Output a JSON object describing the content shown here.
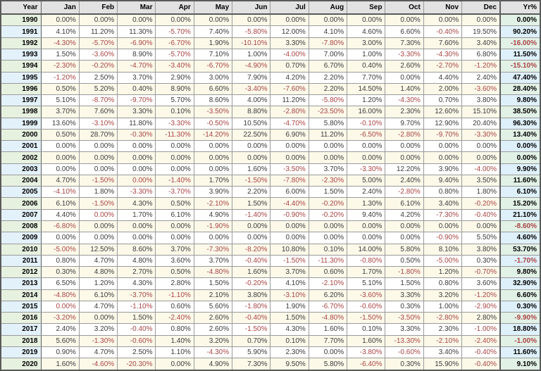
{
  "colors": {
    "negative_text": "#a94444",
    "positive_text": "#3a3a3a",
    "header_bg": "#e2e2e2",
    "stripe_cream": "#fcf9e9",
    "stripe_white": "#ffffff",
    "year_col_green": "#e7f1e0",
    "year_col_blue": "#e3f1fa",
    "yr_col_green": "#e2f1e6",
    "yr_col_blue": "#def0fa",
    "grid_border": "#9a9a9a",
    "outer_border": "#5a5a5a"
  },
  "chart_data": {
    "type": "table",
    "columns": [
      "Year",
      "Jan",
      "Feb",
      "Mar",
      "Apr",
      "May",
      "Jun",
      "Jul",
      "Aug",
      "Sep",
      "Oct",
      "Nov",
      "Dec",
      "Yr%"
    ],
    "red_zero_cells": [
      {
        "year": "2004",
        "month_index": 2
      },
      {
        "year": "2007",
        "month_index": 1
      },
      {
        "year": "2015",
        "month_index": 0
      }
    ],
    "rows": [
      {
        "year": "1990",
        "months": [
          "0.00%",
          "0.00%",
          "0.00%",
          "0.00%",
          "0.00%",
          "0.00%",
          "0.00%",
          "0.00%",
          "0.00%",
          "0.00%",
          "0.00%",
          "0.00%"
        ],
        "yr": "0.00%"
      },
      {
        "year": "1991",
        "months": [
          "4.10%",
          "11.20%",
          "11.30%",
          "-5.70%",
          "7.40%",
          "-5.80%",
          "12.00%",
          "4.10%",
          "4.60%",
          "6.60%",
          "-0.40%",
          "19.50%"
        ],
        "yr": "90.20%"
      },
      {
        "year": "1992",
        "months": [
          "-4.30%",
          "-5.70%",
          "-6.90%",
          "-6.70%",
          "1.90%",
          "-10.10%",
          "3.30%",
          "-7.80%",
          "3.00%",
          "7.30%",
          "7.60%",
          "3.40%"
        ],
        "yr": "-16.00%"
      },
      {
        "year": "1993",
        "months": [
          "1.50%",
          "-3.60%",
          "8.90%",
          "-5.70%",
          "7.10%",
          "1.00%",
          "-4.00%",
          "7.00%",
          "1.00%",
          "-3.30%",
          "-4.30%",
          "6.80%"
        ],
        "yr": "11.50%"
      },
      {
        "year": "1994",
        "months": [
          "-2.30%",
          "-0.20%",
          "-4.70%",
          "-3.40%",
          "-6.70%",
          "-4.90%",
          "0.70%",
          "6.70%",
          "0.40%",
          "2.60%",
          "-2.70%",
          "-1.20%"
        ],
        "yr": "-15.10%"
      },
      {
        "year": "1995",
        "months": [
          "-1.20%",
          "2.50%",
          "3.70%",
          "2.90%",
          "3.00%",
          "7.90%",
          "4.20%",
          "2.20%",
          "7.70%",
          "0.00%",
          "4.40%",
          "2.40%"
        ],
        "yr": "47.40%"
      },
      {
        "year": "1996",
        "months": [
          "0.50%",
          "5.20%",
          "0.40%",
          "8.90%",
          "6.60%",
          "-3.40%",
          "-7.60%",
          "2.20%",
          "14.50%",
          "1.40%",
          "2.00%",
          "-3.60%"
        ],
        "yr": "28.40%"
      },
      {
        "year": "1997",
        "months": [
          "5.10%",
          "-8.70%",
          "-9.70%",
          "5.70%",
          "8.60%",
          "4.00%",
          "11.20%",
          "-5.80%",
          "1.20%",
          "-4.30%",
          "0.70%",
          "3.80%"
        ],
        "yr": "9.80%"
      },
      {
        "year": "1998",
        "months": [
          "3.70%",
          "7.60%",
          "3.30%",
          "0.10%",
          "-3.50%",
          "8.80%",
          "-2.80%",
          "-23.50%",
          "16.00%",
          "2.30%",
          "12.60%",
          "15.10%"
        ],
        "yr": "38.50%"
      },
      {
        "year": "1999",
        "months": [
          "13.60%",
          "-3.10%",
          "11.80%",
          "-3.30%",
          "-0.50%",
          "10.50%",
          "-4.70%",
          "5.80%",
          "-0.10%",
          "9.70%",
          "12.90%",
          "20.40%"
        ],
        "yr": "96.30%"
      },
      {
        "year": "2000",
        "months": [
          "0.50%",
          "28.70%",
          "-0.30%",
          "-11.30%",
          "-14.20%",
          "22.50%",
          "6.90%",
          "11.20%",
          "-6.50%",
          "-2.80%",
          "-9.70%",
          "-3.30%"
        ],
        "yr": "13.40%"
      },
      {
        "year": "2001",
        "months": [
          "0.00%",
          "0.00%",
          "0.00%",
          "0.00%",
          "0.00%",
          "0.00%",
          "0.00%",
          "0.00%",
          "0.00%",
          "0.00%",
          "0.00%",
          "0.00%"
        ],
        "yr": "0.00%"
      },
      {
        "year": "2002",
        "months": [
          "0.00%",
          "0.00%",
          "0.00%",
          "0.00%",
          "0.00%",
          "0.00%",
          "0.00%",
          "0.00%",
          "0.00%",
          "0.00%",
          "0.00%",
          "0.00%"
        ],
        "yr": "0.00%"
      },
      {
        "year": "2003",
        "months": [
          "0.00%",
          "0.00%",
          "0.00%",
          "0.00%",
          "0.00%",
          "1.60%",
          "-3.50%",
          "3.70%",
          "-3.30%",
          "12.20%",
          "3.90%",
          "-4.00%"
        ],
        "yr": "9.90%"
      },
      {
        "year": "2004",
        "months": [
          "4.70%",
          "-1.50%",
          "0.00%",
          "-1.40%",
          "1.70%",
          "-1.50%",
          "-7.80%",
          "-2.30%",
          "5.00%",
          "2.40%",
          "9.40%",
          "3.50%"
        ],
        "yr": "11.60%"
      },
      {
        "year": "2005",
        "months": [
          "-4.10%",
          "1.80%",
          "-3.30%",
          "-3.70%",
          "3.90%",
          "2.20%",
          "6.00%",
          "1.50%",
          "2.40%",
          "-2.80%",
          "0.80%",
          "1.80%"
        ],
        "yr": "6.10%"
      },
      {
        "year": "2006",
        "months": [
          "6.10%",
          "-1.50%",
          "4.30%",
          "0.50%",
          "-2.10%",
          "1.50%",
          "-4.40%",
          "-0.20%",
          "1.30%",
          "6.10%",
          "3.40%",
          "-0.20%"
        ],
        "yr": "15.20%"
      },
      {
        "year": "2007",
        "months": [
          "4.40%",
          "0.00%",
          "1.70%",
          "6.10%",
          "4.90%",
          "-1.40%",
          "-0.90%",
          "-0.20%",
          "9.40%",
          "4.20%",
          "-7.30%",
          "-0.40%"
        ],
        "yr": "21.10%"
      },
      {
        "year": "2008",
        "months": [
          "-6.80%",
          "0.00%",
          "0.00%",
          "0.00%",
          "-1.90%",
          "0.00%",
          "0.00%",
          "0.00%",
          "0.00%",
          "0.00%",
          "0.00%",
          "0.00%"
        ],
        "yr": "-8.60%"
      },
      {
        "year": "2009",
        "months": [
          "0.00%",
          "0.00%",
          "0.00%",
          "0.00%",
          "0.00%",
          "0.00%",
          "0.00%",
          "0.00%",
          "0.00%",
          "0.00%",
          "-0.90%",
          "5.50%"
        ],
        "yr": "4.60%"
      },
      {
        "year": "2010",
        "months": [
          "-5.00%",
          "12.50%",
          "8.60%",
          "3.70%",
          "-7.30%",
          "-8.20%",
          "10.80%",
          "0.10%",
          "14.00%",
          "5.80%",
          "8.10%",
          "3.80%"
        ],
        "yr": "53.70%"
      },
      {
        "year": "2011",
        "months": [
          "0.80%",
          "4.70%",
          "4.80%",
          "3.60%",
          "3.70%",
          "-0.40%",
          "-1.50%",
          "-11.30%",
          "-0.80%",
          "0.50%",
          "-5.00%",
          "0.30%"
        ],
        "yr": "-1.70%"
      },
      {
        "year": "2012",
        "months": [
          "0.30%",
          "4.80%",
          "2.70%",
          "0.50%",
          "-4.80%",
          "1.60%",
          "3.70%",
          "0.60%",
          "1.70%",
          "-1.80%",
          "1.20%",
          "-0.70%"
        ],
        "yr": "9.80%"
      },
      {
        "year": "2013",
        "months": [
          "6.50%",
          "1.20%",
          "4.30%",
          "2.80%",
          "1.50%",
          "-0.20%",
          "4.10%",
          "-2.10%",
          "5.10%",
          "1.50%",
          "0.80%",
          "3.60%"
        ],
        "yr": "32.90%"
      },
      {
        "year": "2014",
        "months": [
          "-4.80%",
          "6.10%",
          "-3.70%",
          "-1.10%",
          "2.10%",
          "3.80%",
          "-3.10%",
          "6.20%",
          "-3.60%",
          "3.30%",
          "3.20%",
          "-1.20%"
        ],
        "yr": "6.60%"
      },
      {
        "year": "2015",
        "months": [
          "0.00%",
          "4.70%",
          "-1.10%",
          "0.60%",
          "5.60%",
          "-1.80%",
          "1.90%",
          "-6.70%",
          "-0.60%",
          "0.30%",
          "1.00%",
          "-2.90%"
        ],
        "yr": "0.30%"
      },
      {
        "year": "2016",
        "months": [
          "-3.20%",
          "0.00%",
          "1.50%",
          "-2.40%",
          "2.60%",
          "-0.40%",
          "1.50%",
          "-4.80%",
          "-1.50%",
          "-3.50%",
          "-2.80%",
          "2.80%"
        ],
        "yr": "-9.90%"
      },
      {
        "year": "2017",
        "months": [
          "2.40%",
          "3.20%",
          "-0.40%",
          "0.80%",
          "2.60%",
          "-1.50%",
          "4.30%",
          "1.60%",
          "0.10%",
          "3.30%",
          "2.30%",
          "-1.00%"
        ],
        "yr": "18.80%"
      },
      {
        "year": "2018",
        "months": [
          "5.60%",
          "-1.30%",
          "-0.60%",
          "1.40%",
          "3.20%",
          "0.70%",
          "0.10%",
          "7.70%",
          "1.60%",
          "-13.30%",
          "-2.10%",
          "-2.40%"
        ],
        "yr": "-1.00%"
      },
      {
        "year": "2019",
        "months": [
          "0.90%",
          "4.70%",
          "2.50%",
          "1.10%",
          "-4.30%",
          "5.90%",
          "2.30%",
          "0.00%",
          "-3.80%",
          "-0.60%",
          "3.40%",
          "-0.40%"
        ],
        "yr": "11.60%"
      },
      {
        "year": "2020",
        "months": [
          "1.60%",
          "-4.60%",
          "-20.30%",
          "0.00%",
          "4.90%",
          "7.30%",
          "9.50%",
          "5.80%",
          "-6.40%",
          "0.30%",
          "15.90%",
          "-0.40%"
        ],
        "yr": "9.10%"
      }
    ]
  }
}
